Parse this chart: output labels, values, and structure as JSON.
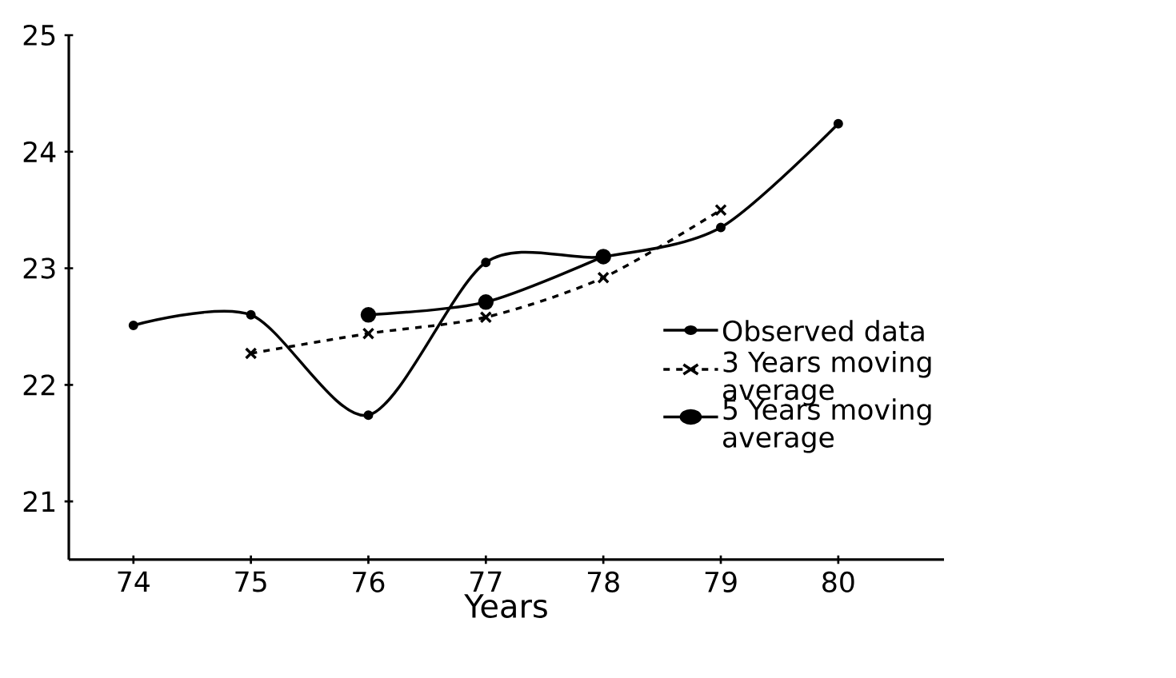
{
  "chart_data": {
    "type": "line",
    "xlabel": "Years",
    "x": [
      74,
      75,
      76,
      77,
      78,
      79,
      80
    ],
    "series": [
      {
        "name": "Observed data",
        "color": "#000000",
        "marker": "circle",
        "line_style": "solid",
        "values": [
          22.51,
          22.6,
          21.74,
          23.05,
          23.1,
          23.35,
          24.24
        ]
      },
      {
        "name": "3 Years moving average",
        "color": "#000000",
        "marker": "cross",
        "line_style": "dashed",
        "values": [
          null,
          22.27,
          22.44,
          22.58,
          22.92,
          23.5,
          null
        ]
      },
      {
        "name": "5 Years moving average",
        "color": "#000000",
        "marker": "circle",
        "line_style": "solid",
        "values": [
          null,
          null,
          22.6,
          22.71,
          23.1,
          null,
          null
        ]
      }
    ],
    "xlim": [
      73.45,
      80.9
    ],
    "ylim": [
      20.5,
      25
    ],
    "xticks": [
      74,
      75,
      76,
      77,
      78,
      79,
      80
    ],
    "yticks": [
      21,
      22,
      23,
      24,
      25
    ],
    "grid": false,
    "legend": "right"
  }
}
